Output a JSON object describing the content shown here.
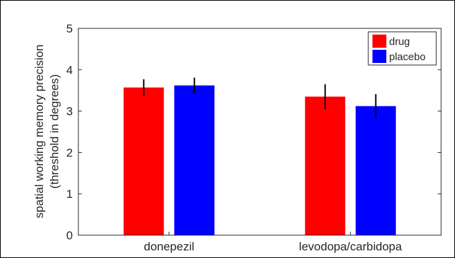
{
  "chart_data": {
    "type": "bar",
    "categories": [
      "donepezil",
      "levodopa/carbidopa"
    ],
    "series": [
      {
        "name": "drug",
        "color": "#ff0000",
        "values": [
          3.57,
          3.35
        ],
        "errors": [
          0.2,
          0.3
        ]
      },
      {
        "name": "placebo",
        "color": "#0000ff",
        "values": [
          3.62,
          3.12
        ],
        "errors": [
          0.19,
          0.29
        ]
      }
    ],
    "ylabel_line1": "spatial working memory precision",
    "ylabel_line2": "(threshold in degrees)",
    "ylim": [
      0,
      5
    ],
    "yticks": [
      "0",
      "1",
      "2",
      "3",
      "4",
      "5"
    ],
    "legend_position": "top-right",
    "grid": false
  }
}
